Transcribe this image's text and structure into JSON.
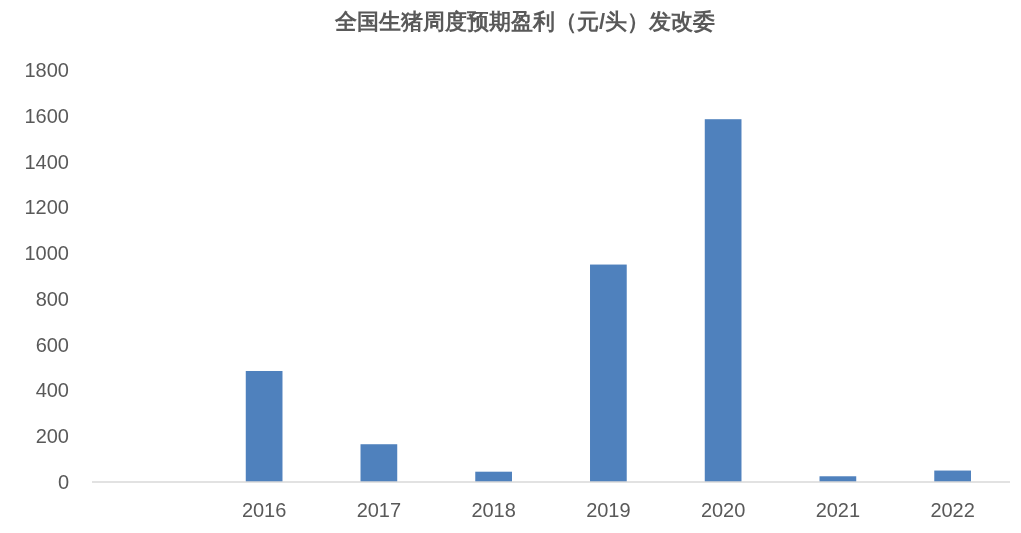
{
  "chart_data": {
    "type": "bar",
    "title": "全国生猪周度预期盈利（元/头）发改委",
    "categories": [
      null,
      "2016",
      "2017",
      "2018",
      "2019",
      "2020",
      "2021",
      "2022"
    ],
    "values": [
      null,
      485,
      165,
      45,
      950,
      1585,
      25,
      50
    ],
    "color": "#4f81bd",
    "ylim": [
      0,
      1800
    ],
    "yticks": [
      0,
      200,
      400,
      600,
      800,
      1000,
      1200,
      1400,
      1600,
      1800
    ]
  }
}
